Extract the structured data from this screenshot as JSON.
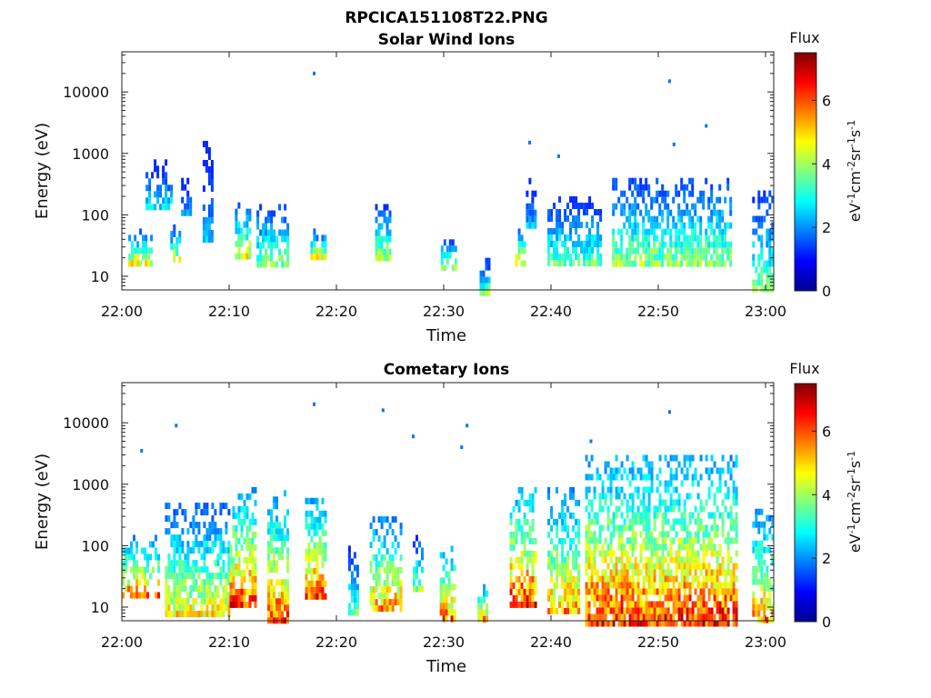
{
  "figure_title": "RPCICA151108T22.PNG",
  "chart_data": [
    {
      "type": "heatmap",
      "title": "Solar Wind Ions",
      "xlabel": "Time",
      "ylabel": "Energy (eV)",
      "x_ticks": [
        "22:00",
        "22:10",
        "22:20",
        "22:30",
        "22:40",
        "22:50",
        "23:00"
      ],
      "x_range_minutes": [
        0,
        60.5
      ],
      "y_ticks": [
        "10",
        "100",
        "1000",
        "10000"
      ],
      "y_scale": "log",
      "y_range": [
        6,
        45000
      ],
      "colorbar": {
        "title": "Flux",
        "label": "eV-1cm-2sr-1s-1",
        "ticks": [
          "0",
          "2",
          "4",
          "6"
        ],
        "range": [
          0,
          7.5
        ]
      },
      "activity": [
        {
          "t_start_min": 0.6,
          "t_end_min": 2.8,
          "e_low_eV": 18,
          "e_high_eV": 60,
          "peak_flux": 5.0
        },
        {
          "t_start_min": 2.2,
          "t_end_min": 4.6,
          "e_low_eV": 120,
          "e_high_eV": 800,
          "peak_flux": 3.2
        },
        {
          "t_start_min": 4.5,
          "t_end_min": 5.5,
          "e_low_eV": 20,
          "e_high_eV": 70,
          "peak_flux": 4.8
        },
        {
          "t_start_min": 5.5,
          "t_end_min": 6.5,
          "e_low_eV": 100,
          "e_high_eV": 400,
          "peak_flux": 2.6
        },
        {
          "t_start_min": 7.5,
          "t_end_min": 8.5,
          "e_low_eV": 40,
          "e_high_eV": 1600,
          "peak_flux": 2.6
        },
        {
          "t_start_min": 10.5,
          "t_end_min": 12.0,
          "e_low_eV": 20,
          "e_high_eV": 160,
          "peak_flux": 5.2
        },
        {
          "t_start_min": 12.5,
          "t_end_min": 15.5,
          "e_low_eV": 14,
          "e_high_eV": 150,
          "peak_flux": 4.4
        },
        {
          "t_start_min": 17.5,
          "t_end_min": 19.0,
          "e_low_eV": 22,
          "e_high_eV": 60,
          "peak_flux": 5.0
        },
        {
          "t_start_min": 23.5,
          "t_end_min": 25.0,
          "e_low_eV": 22,
          "e_high_eV": 150,
          "peak_flux": 4.6
        },
        {
          "t_start_min": 29.6,
          "t_end_min": 31.0,
          "e_low_eV": 14,
          "e_high_eV": 40,
          "peak_flux": 4.8
        },
        {
          "t_start_min": 33.2,
          "t_end_min": 34.0,
          "e_low_eV": 6,
          "e_high_eV": 20,
          "peak_flux": 4.0
        },
        {
          "t_start_min": 36.5,
          "t_end_min": 37.5,
          "e_low_eV": 18,
          "e_high_eV": 60,
          "peak_flux": 5.2
        },
        {
          "t_start_min": 37.5,
          "t_end_min": 38.5,
          "e_low_eV": 60,
          "e_high_eV": 400,
          "peak_flux": 2.8
        },
        {
          "t_start_min": 39.5,
          "t_end_min": 44.5,
          "e_low_eV": 18,
          "e_high_eV": 200,
          "peak_flux": 3.8
        },
        {
          "t_start_min": 45.5,
          "t_end_min": 56.5,
          "e_low_eV": 15,
          "e_high_eV": 400,
          "peak_flux": 4.4
        },
        {
          "t_start_min": 58.5,
          "t_end_min": 60.3,
          "e_low_eV": 6,
          "e_high_eV": 250,
          "peak_flux": 4.0
        }
      ],
      "sparse_points": [
        {
          "t_min": 17.8,
          "e_eV": 20000
        },
        {
          "t_min": 50.8,
          "e_eV": 15000
        },
        {
          "t_min": 54.2,
          "e_eV": 2800
        },
        {
          "t_min": 40.5,
          "e_eV": 900
        },
        {
          "t_min": 37.8,
          "e_eV": 1500
        },
        {
          "t_min": 51.2,
          "e_eV": 1400
        }
      ]
    },
    {
      "type": "heatmap",
      "title": "Cometary Ions",
      "xlabel": "Time",
      "ylabel": "Energy (eV)",
      "x_ticks": [
        "22:00",
        "22:10",
        "22:20",
        "22:30",
        "22:40",
        "22:50",
        "23:00"
      ],
      "x_range_minutes": [
        0,
        60.5
      ],
      "y_ticks": [
        "10",
        "100",
        "1000",
        "10000"
      ],
      "y_scale": "log",
      "y_range": [
        6,
        45000
      ],
      "colorbar": {
        "title": "Flux",
        "label": "eV-1cm-2sr-1s-1",
        "ticks": [
          "0",
          "2",
          "4",
          "6"
        ],
        "range": [
          0,
          7.5
        ]
      },
      "activity": [
        {
          "t_start_min": 0.0,
          "t_end_min": 3.5,
          "e_low_eV": 15,
          "e_high_eV": 150,
          "peak_flux": 6.4
        },
        {
          "t_start_min": 4.0,
          "t_end_min": 10.0,
          "e_low_eV": 8,
          "e_high_eV": 500,
          "peak_flux": 5.2
        },
        {
          "t_start_min": 10.0,
          "t_end_min": 12.5,
          "e_low_eV": 10,
          "e_high_eV": 900,
          "peak_flux": 6.8
        },
        {
          "t_start_min": 13.5,
          "t_end_min": 15.5,
          "e_low_eV": 6,
          "e_high_eV": 800,
          "peak_flux": 6.6
        },
        {
          "t_start_min": 17.0,
          "t_end_min": 19.0,
          "e_low_eV": 15,
          "e_high_eV": 600,
          "peak_flux": 6.6
        },
        {
          "t_start_min": 21.0,
          "t_end_min": 22.0,
          "e_low_eV": 8,
          "e_high_eV": 100,
          "peak_flux": 4.0
        },
        {
          "t_start_min": 23.0,
          "t_end_min": 26.0,
          "e_low_eV": 10,
          "e_high_eV": 300,
          "peak_flux": 6.0
        },
        {
          "t_start_min": 27.0,
          "t_end_min": 28.0,
          "e_low_eV": 20,
          "e_high_eV": 150,
          "peak_flux": 4.4
        },
        {
          "t_start_min": 29.5,
          "t_end_min": 31.0,
          "e_low_eV": 6,
          "e_high_eV": 100,
          "peak_flux": 6.6
        },
        {
          "t_start_min": 33.0,
          "t_end_min": 34.0,
          "e_low_eV": 6,
          "e_high_eV": 30,
          "peak_flux": 6.2
        },
        {
          "t_start_min": 36.0,
          "t_end_min": 38.5,
          "e_low_eV": 10,
          "e_high_eV": 900,
          "peak_flux": 7.0
        },
        {
          "t_start_min": 39.5,
          "t_end_min": 42.5,
          "e_low_eV": 8,
          "e_high_eV": 900,
          "peak_flux": 6.0
        },
        {
          "t_start_min": 43.0,
          "t_end_min": 57.0,
          "e_low_eV": 6,
          "e_high_eV": 3000,
          "peak_flux": 6.8
        },
        {
          "t_start_min": 58.5,
          "t_end_min": 60.3,
          "e_low_eV": 6,
          "e_high_eV": 400,
          "peak_flux": 6.0
        }
      ],
      "sparse_points": [
        {
          "t_min": 17.8,
          "e_eV": 20000
        },
        {
          "t_min": 24.2,
          "e_eV": 16000
        },
        {
          "t_min": 50.8,
          "e_eV": 15000
        },
        {
          "t_min": 5.0,
          "e_eV": 9000
        },
        {
          "t_min": 32.0,
          "e_eV": 9000
        },
        {
          "t_min": 27.0,
          "e_eV": 6000
        },
        {
          "t_min": 31.5,
          "e_eV": 4000
        },
        {
          "t_min": 1.8,
          "e_eV": 3500
        },
        {
          "t_min": 43.5,
          "e_eV": 5000
        }
      ]
    }
  ]
}
